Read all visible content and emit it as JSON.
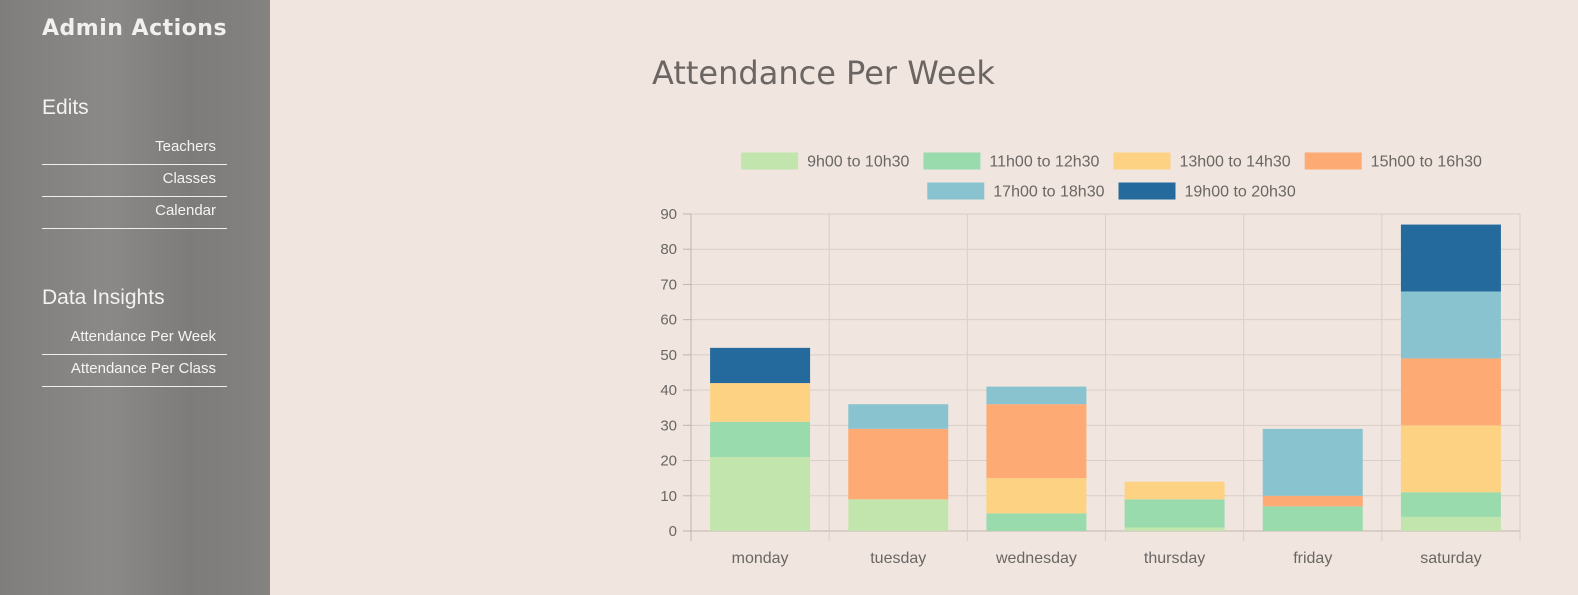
{
  "sidebar": {
    "brand": "Admin Actions",
    "sections": [
      {
        "title": "Edits",
        "items": [
          "Teachers",
          "Classes",
          "Calendar"
        ]
      },
      {
        "title": "Data Insights",
        "items": [
          "Attendance Per Week",
          "Attendance Per Class"
        ]
      }
    ]
  },
  "page": {
    "title": "Attendance Per Week"
  },
  "chart_data": {
    "type": "bar",
    "stacked": true,
    "categories": [
      "monday",
      "tuesday",
      "wednesday",
      "thursday",
      "friday",
      "saturday"
    ],
    "ylim": [
      0,
      90
    ],
    "yticks": [
      0,
      10,
      20,
      30,
      40,
      50,
      60,
      70,
      80,
      90
    ],
    "grid": true,
    "legend_position": "top",
    "series": [
      {
        "name": "9h00 to 10h30",
        "color": "#c2e5ad",
        "values": [
          21,
          9,
          0,
          1,
          0,
          4
        ]
      },
      {
        "name": "11h00 to 12h30",
        "color": "#9adbad",
        "values": [
          10,
          0,
          5,
          8,
          7,
          7
        ]
      },
      {
        "name": "13h00 to 14h30",
        "color": "#fdd283",
        "values": [
          11,
          0,
          10,
          5,
          0,
          19
        ]
      },
      {
        "name": "15h00 to 16h30",
        "color": "#fdaa75",
        "values": [
          0,
          20,
          21,
          0,
          3,
          19
        ]
      },
      {
        "name": "17h00 to 18h30",
        "color": "#8ac3d0",
        "values": [
          0,
          7,
          5,
          0,
          19,
          19
        ]
      },
      {
        "name": "19h00 to 20h30",
        "color": "#246a9c",
        "values": [
          10,
          0,
          0,
          0,
          0,
          19
        ]
      }
    ]
  }
}
